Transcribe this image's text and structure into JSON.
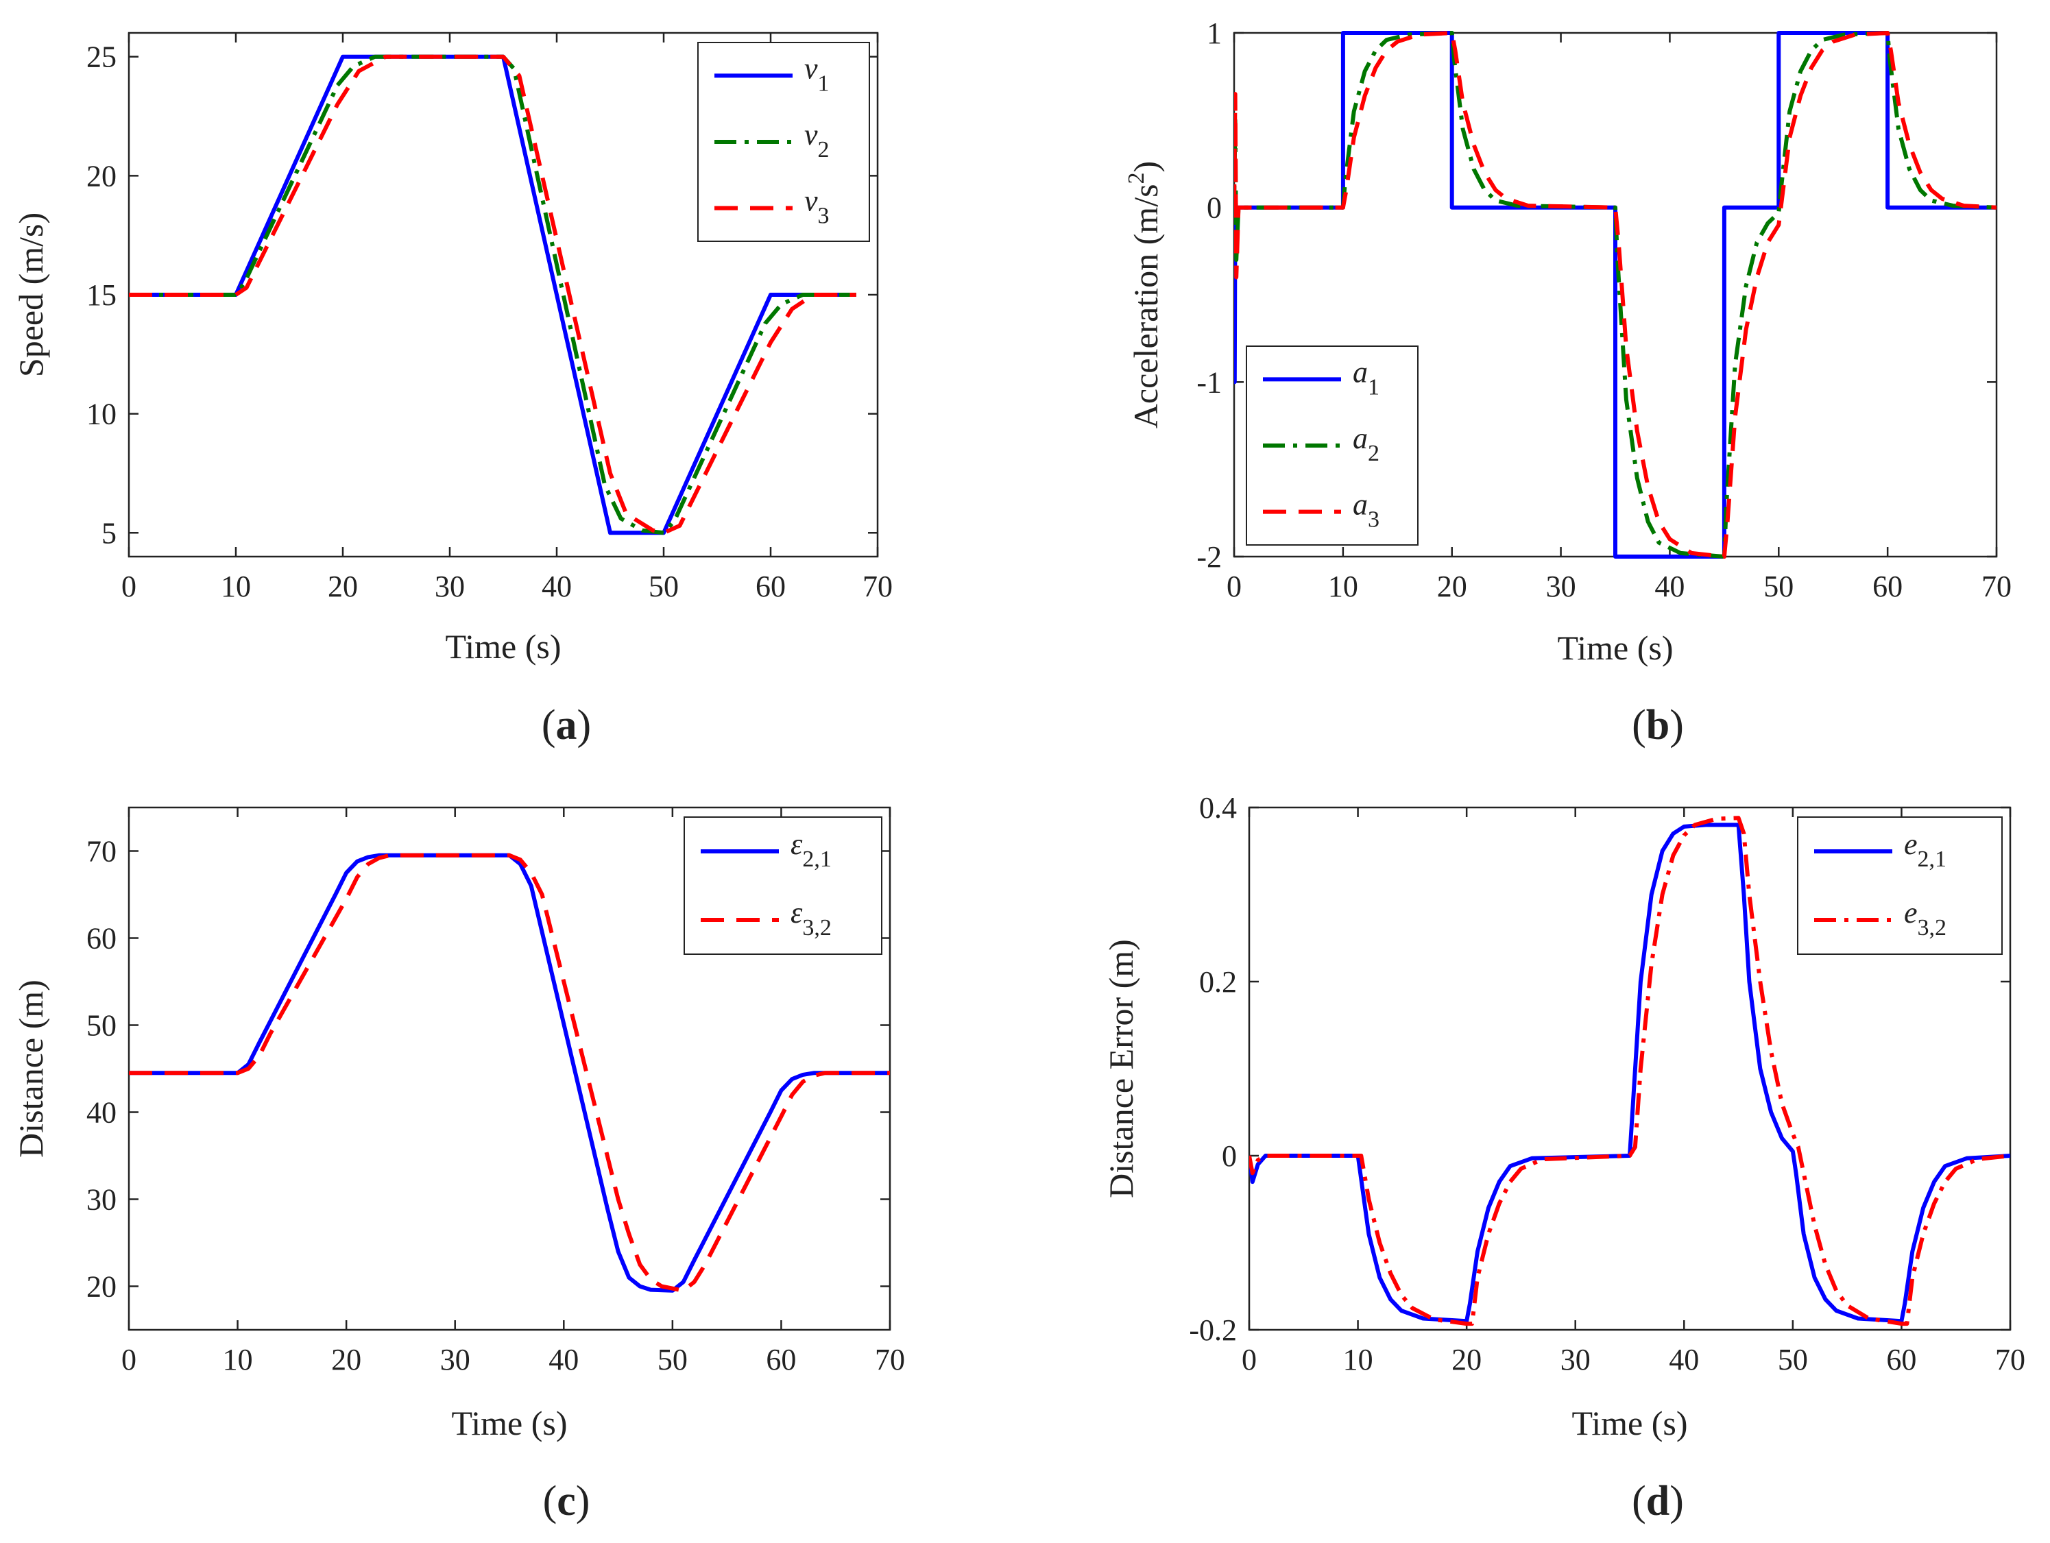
{
  "chart_data": [
    {
      "type": "line",
      "panel_label": {
        "open": "(",
        "letter": "a",
        "close": ")"
      },
      "xlabel": "Time (s)",
      "ylabel": "Speed (m/s)",
      "xlim": [
        0,
        70
      ],
      "ylim": [
        4,
        26
      ],
      "xticks": [
        0,
        10,
        20,
        30,
        40,
        50,
        60,
        70
      ],
      "yticks": [
        5,
        10,
        15,
        20,
        25
      ],
      "legend_position": "top-right",
      "series": [
        {
          "name": "v1",
          "symbol": "v",
          "sub": "1",
          "color": "#0000ff",
          "dash": "solid",
          "x": [
            0,
            10,
            20,
            35,
            45,
            50,
            60,
            68
          ],
          "y": [
            15,
            15,
            25,
            25,
            5,
            5,
            15,
            15
          ]
        },
        {
          "name": "v2",
          "symbol": "v",
          "sub": "2",
          "color": "#007700",
          "dash": "dashdot",
          "x": [
            0,
            10,
            10.8,
            19.5,
            21,
            23,
            35,
            36,
            44.5,
            46,
            48,
            50,
            51,
            59.5,
            61,
            63,
            68
          ],
          "y": [
            15,
            15,
            15.5,
            23.8,
            24.6,
            25,
            25,
            24.5,
            7,
            5.6,
            5.1,
            5,
            5.5,
            13.8,
            14.6,
            15,
            15
          ]
        },
        {
          "name": "v3",
          "symbol": "v",
          "sub": "3",
          "color": "#ff0000",
          "dash": "dashed",
          "x": [
            0,
            10,
            11,
            19.5,
            21.5,
            24,
            35,
            36.5,
            45,
            46.5,
            49,
            50,
            51.5,
            60,
            62,
            64,
            68
          ],
          "y": [
            15,
            15,
            15.3,
            23,
            24.4,
            25,
            25,
            24.2,
            7.5,
            5.8,
            5.1,
            5,
            5.3,
            13,
            14.4,
            15,
            15
          ]
        }
      ]
    },
    {
      "type": "line",
      "panel_label": {
        "open": "(",
        "letter": "b",
        "close": ")"
      },
      "xlabel": "Time (s)",
      "ylabel": "Acceleration (m/s",
      "ylabel_sup": "2",
      "ylabel_end": ")",
      "xlim": [
        0,
        70
      ],
      "ylim": [
        -2,
        1
      ],
      "xticks": [
        0,
        10,
        20,
        30,
        40,
        50,
        60,
        70
      ],
      "yticks": [
        -2,
        -1,
        0,
        1
      ],
      "legend_position": "bottom-left",
      "series": [
        {
          "name": "a1",
          "symbol": "a",
          "sub": "1",
          "color": "#0000ff",
          "dash": "solid",
          "x": [
            0,
            0.05,
            0.1,
            0.2,
            10,
            10,
            20,
            20,
            35,
            35,
            45,
            45,
            50,
            50,
            60,
            60,
            70
          ],
          "y": [
            0,
            -1,
            0,
            0,
            0,
            1,
            1,
            0,
            0,
            -2,
            -2,
            0,
            0,
            1,
            1,
            0,
            0
          ]
        },
        {
          "name": "a2",
          "symbol": "a",
          "sub": "2",
          "color": "#007700",
          "dash": "dashdot",
          "x": [
            0,
            0.1,
            0.2,
            0.4,
            10,
            10.2,
            11,
            12,
            13,
            14,
            16,
            20,
            20.2,
            21,
            22,
            23,
            24,
            26,
            35,
            35.2,
            36,
            37,
            38,
            39,
            41,
            45,
            45.2,
            46,
            47,
            48,
            49,
            50,
            50.2,
            51,
            52,
            53,
            54,
            56,
            60,
            60.2,
            61,
            62,
            63,
            64,
            66,
            70
          ],
          "y": [
            0,
            0.5,
            -0.3,
            0,
            0,
            0.15,
            0.55,
            0.78,
            0.9,
            0.96,
            0.99,
            1,
            0.85,
            0.45,
            0.22,
            0.1,
            0.04,
            0.01,
            0,
            -0.3,
            -1.1,
            -1.55,
            -1.8,
            -1.92,
            -1.98,
            -2,
            -1.7,
            -0.9,
            -0.45,
            -0.2,
            -0.09,
            -0.03,
            0.1,
            0.55,
            0.78,
            0.9,
            0.96,
            0.99,
            1,
            0.85,
            0.45,
            0.22,
            0.1,
            0.04,
            0.01,
            0
          ]
        },
        {
          "name": "a3",
          "symbol": "a",
          "sub": "3",
          "color": "#ff0000",
          "dash": "dashed",
          "x": [
            0,
            0.1,
            0.2,
            0.4,
            10,
            10.3,
            11,
            12,
            13,
            14,
            15,
            17,
            20,
            20.3,
            21,
            22,
            23,
            24,
            25,
            27,
            35,
            35.3,
            36,
            37,
            38,
            39,
            40,
            42,
            45,
            45.3,
            46,
            47,
            48,
            49,
            50,
            50.3,
            51,
            52,
            53,
            54,
            55,
            57,
            60,
            60.3,
            61,
            62,
            63,
            64,
            65,
            67,
            70
          ],
          "y": [
            0,
            0.65,
            -0.4,
            0,
            0,
            0.1,
            0.4,
            0.64,
            0.8,
            0.9,
            0.95,
            0.99,
            1,
            0.9,
            0.6,
            0.36,
            0.2,
            0.1,
            0.05,
            0.01,
            0,
            -0.2,
            -0.8,
            -1.28,
            -1.6,
            -1.8,
            -1.9,
            -1.98,
            -2,
            -1.8,
            -1.2,
            -0.7,
            -0.4,
            -0.2,
            -0.1,
            0.05,
            0.4,
            0.64,
            0.8,
            0.9,
            0.95,
            0.99,
            1,
            0.9,
            0.6,
            0.36,
            0.2,
            0.1,
            0.05,
            0.01,
            0
          ]
        }
      ]
    },
    {
      "type": "line",
      "panel_label": {
        "open": "(",
        "letter": "c",
        "close": ")"
      },
      "xlabel": "Time (s)",
      "ylabel": "Distance (m)",
      "xlim": [
        0,
        70
      ],
      "ylim": [
        15,
        75
      ],
      "xticks": [
        0,
        10,
        20,
        30,
        40,
        50,
        60,
        70
      ],
      "yticks": [
        20,
        30,
        40,
        50,
        60,
        70
      ],
      "legend_position": "top-right",
      "series": [
        {
          "name": "ε2,1",
          "symbol": "ε",
          "sub": "2,1",
          "color": "#0000ff",
          "dash": "solid",
          "x": [
            0,
            10,
            11,
            12,
            19,
            20,
            21,
            22,
            23,
            35,
            36,
            37,
            44,
            45,
            46,
            47,
            48,
            50,
            51,
            52,
            59,
            60,
            61,
            62,
            63,
            70
          ],
          "y": [
            44.5,
            44.5,
            45.5,
            48,
            65,
            67.5,
            68.8,
            69.3,
            69.5,
            69.5,
            68.5,
            66,
            29,
            24,
            21,
            20,
            19.6,
            19.5,
            20.5,
            23,
            40,
            42.5,
            43.8,
            44.3,
            44.5,
            44.5
          ]
        },
        {
          "name": "ε3,2",
          "symbol": "ε",
          "sub": "3,2",
          "color": "#ff0000",
          "dash": "dashed",
          "x": [
            0,
            10,
            11,
            12,
            13,
            20,
            21,
            22,
            23,
            24,
            35,
            36,
            37,
            38,
            45,
            46,
            47,
            48,
            49,
            51,
            52,
            53,
            60,
            61,
            62,
            63,
            64,
            70
          ],
          "y": [
            44.5,
            44.5,
            45,
            46.5,
            49,
            64.5,
            67,
            68.5,
            69.2,
            69.5,
            69.5,
            69,
            67.5,
            65,
            30,
            26,
            22.5,
            20.8,
            20,
            19.5,
            20.5,
            22.5,
            39.5,
            42,
            43.5,
            44.2,
            44.5,
            44.5
          ]
        }
      ]
    },
    {
      "type": "line",
      "panel_label": {
        "open": "(",
        "letter": "d",
        "close": ")"
      },
      "xlabel": "Time (s)",
      "ylabel": "Distance Error (m)",
      "xlim": [
        0,
        70
      ],
      "ylim": [
        -0.2,
        0.4
      ],
      "xticks": [
        0,
        10,
        20,
        30,
        40,
        50,
        60,
        70
      ],
      "yticks": [
        -0.2,
        0,
        0.2,
        0.4
      ],
      "ytick_labels": [
        "-0.2",
        "0",
        "0.2",
        "0.4"
      ],
      "legend_position": "top-right",
      "series": [
        {
          "name": "e2,1",
          "symbol": "e",
          "sub": "2,1",
          "color": "#0000ff",
          "dash": "solid",
          "x": [
            0,
            0.3,
            0.8,
            1.5,
            10,
            11,
            12,
            13,
            14,
            16,
            20,
            20.3,
            21,
            22,
            23,
            24,
            26,
            35,
            35.3,
            36,
            37,
            38,
            39,
            40,
            42,
            45,
            45.5,
            46,
            47,
            48,
            49,
            50,
            50.3,
            51,
            52,
            53,
            54,
            56,
            60,
            60.3,
            61,
            62,
            63,
            64,
            66,
            70
          ],
          "y": [
            0,
            -0.03,
            -0.01,
            0,
            0,
            -0.09,
            -0.14,
            -0.165,
            -0.178,
            -0.187,
            -0.19,
            -0.17,
            -0.11,
            -0.06,
            -0.03,
            -0.012,
            -0.003,
            0,
            0.06,
            0.2,
            0.3,
            0.35,
            0.37,
            0.378,
            0.38,
            0.38,
            0.3,
            0.2,
            0.1,
            0.05,
            0.02,
            0.005,
            -0.02,
            -0.09,
            -0.14,
            -0.165,
            -0.178,
            -0.187,
            -0.19,
            -0.17,
            -0.11,
            -0.06,
            -0.03,
            -0.012,
            -0.003,
            0
          ]
        },
        {
          "name": "e3,2",
          "symbol": "e",
          "sub": "3,2",
          "color": "#ff0000",
          "dash": "dashdot",
          "x": [
            0,
            0.3,
            0.8,
            1.5,
            10,
            10.3,
            11,
            12,
            13,
            14,
            15,
            17,
            20,
            20.5,
            21,
            22,
            23,
            24,
            25,
            27,
            35,
            35.5,
            36,
            37,
            38,
            39,
            40,
            41,
            43,
            45,
            45.5,
            46,
            47,
            48,
            49,
            50,
            50.5,
            51,
            52,
            53,
            54,
            55,
            57,
            60,
            60.5,
            61,
            62,
            63,
            64,
            65,
            67,
            70
          ],
          "y": [
            0,
            -0.02,
            -0.005,
            0,
            0,
            0,
            -0.05,
            -0.1,
            -0.135,
            -0.16,
            -0.175,
            -0.188,
            -0.193,
            -0.193,
            -0.14,
            -0.09,
            -0.055,
            -0.03,
            -0.015,
            -0.004,
            0,
            0.01,
            0.1,
            0.22,
            0.3,
            0.345,
            0.368,
            0.38,
            0.387,
            0.388,
            0.37,
            0.3,
            0.2,
            0.12,
            0.06,
            0.025,
            0.01,
            -0.02,
            -0.08,
            -0.125,
            -0.155,
            -0.172,
            -0.187,
            -0.193,
            -0.193,
            -0.14,
            -0.09,
            -0.055,
            -0.03,
            -0.015,
            -0.004,
            0
          ]
        }
      ]
    }
  ]
}
